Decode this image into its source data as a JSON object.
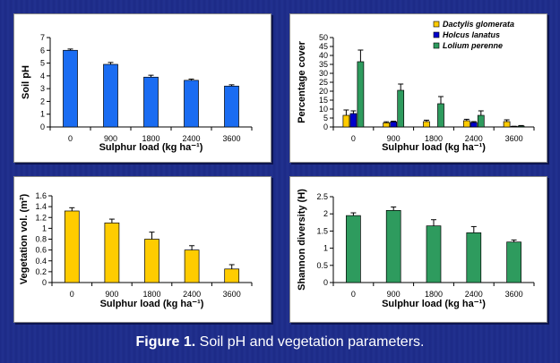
{
  "caption": {
    "label": "Figure 1.",
    "text": " Soil pH and vegetation parameters."
  },
  "chart_data": [
    {
      "type": "bar",
      "categories": [
        "0",
        "900",
        "1800",
        "2400",
        "3600"
      ],
      "values": [
        6.0,
        4.9,
        3.9,
        3.65,
        3.2
      ],
      "errors": [
        0.1,
        0.15,
        0.15,
        0.1,
        0.1
      ],
      "ylabel": "Soil pH",
      "xlabel": "Sulphur load (kg ha⁻¹)",
      "ylim": [
        0,
        7
      ],
      "yticks": [
        "0",
        "1",
        "2",
        "3",
        "4",
        "5",
        "6",
        "7"
      ],
      "color": "#1a6cf2"
    },
    {
      "type": "bar",
      "categories": [
        "0",
        "900",
        "1800",
        "2400",
        "3600"
      ],
      "series": [
        {
          "name": "Dactylis glomerata",
          "values": [
            6.5,
            2.3,
            3.0,
            3.5,
            3.0
          ],
          "errors": [
            3.0,
            0.6,
            0.8,
            0.8,
            1.0
          ],
          "color": "#ffcc00"
        },
        {
          "name": "Holcus lanatus",
          "values": [
            7.5,
            2.8,
            0,
            2.5,
            0.3
          ],
          "errors": [
            1.5,
            0.4,
            0,
            0.5,
            0.1
          ],
          "color": "#0000cc"
        },
        {
          "name": "Lolium perenne",
          "values": [
            36.5,
            20.5,
            13.0,
            6.5,
            0.5
          ],
          "errors": [
            6.5,
            3.5,
            4.0,
            2.5,
            0.3
          ],
          "color": "#2e9b5e"
        }
      ],
      "ylabel": "Percentage cover",
      "xlabel": "Sulphur load (kg ha⁻¹)",
      "ylim": [
        0,
        50
      ],
      "yticks": [
        "0",
        "5",
        "10",
        "15",
        "20",
        "25",
        "30",
        "35",
        "40",
        "45",
        "50"
      ],
      "legend_position": "top-right"
    },
    {
      "type": "bar",
      "categories": [
        "0",
        "900",
        "1800",
        "2400",
        "3600"
      ],
      "values": [
        1.32,
        1.1,
        0.8,
        0.6,
        0.25
      ],
      "errors": [
        0.06,
        0.07,
        0.13,
        0.08,
        0.08
      ],
      "ylabel": "Vegetation  vol. (m²)",
      "xlabel": "Sulphur load (kg ha⁻¹)",
      "ylim": [
        0,
        1.6
      ],
      "yticks": [
        "0",
        "0.2",
        "0.4",
        "0.6",
        "0.8",
        "1",
        "1.2",
        "1.4",
        "1.6"
      ],
      "color": "#ffcc00"
    },
    {
      "type": "bar",
      "categories": [
        "0",
        "900",
        "1800",
        "2400",
        "3600"
      ],
      "values": [
        1.95,
        2.1,
        1.65,
        1.45,
        1.18
      ],
      "errors": [
        0.08,
        0.1,
        0.18,
        0.18,
        0.06
      ],
      "ylabel": "Shannon diversity (H)",
      "xlabel": "Sulphur load (kg ha⁻¹)",
      "ylim": [
        0,
        2.5
      ],
      "yticks": [
        "0",
        "0.5",
        "1",
        "1.5",
        "2",
        "2.5"
      ],
      "color": "#2e9b5e"
    }
  ]
}
